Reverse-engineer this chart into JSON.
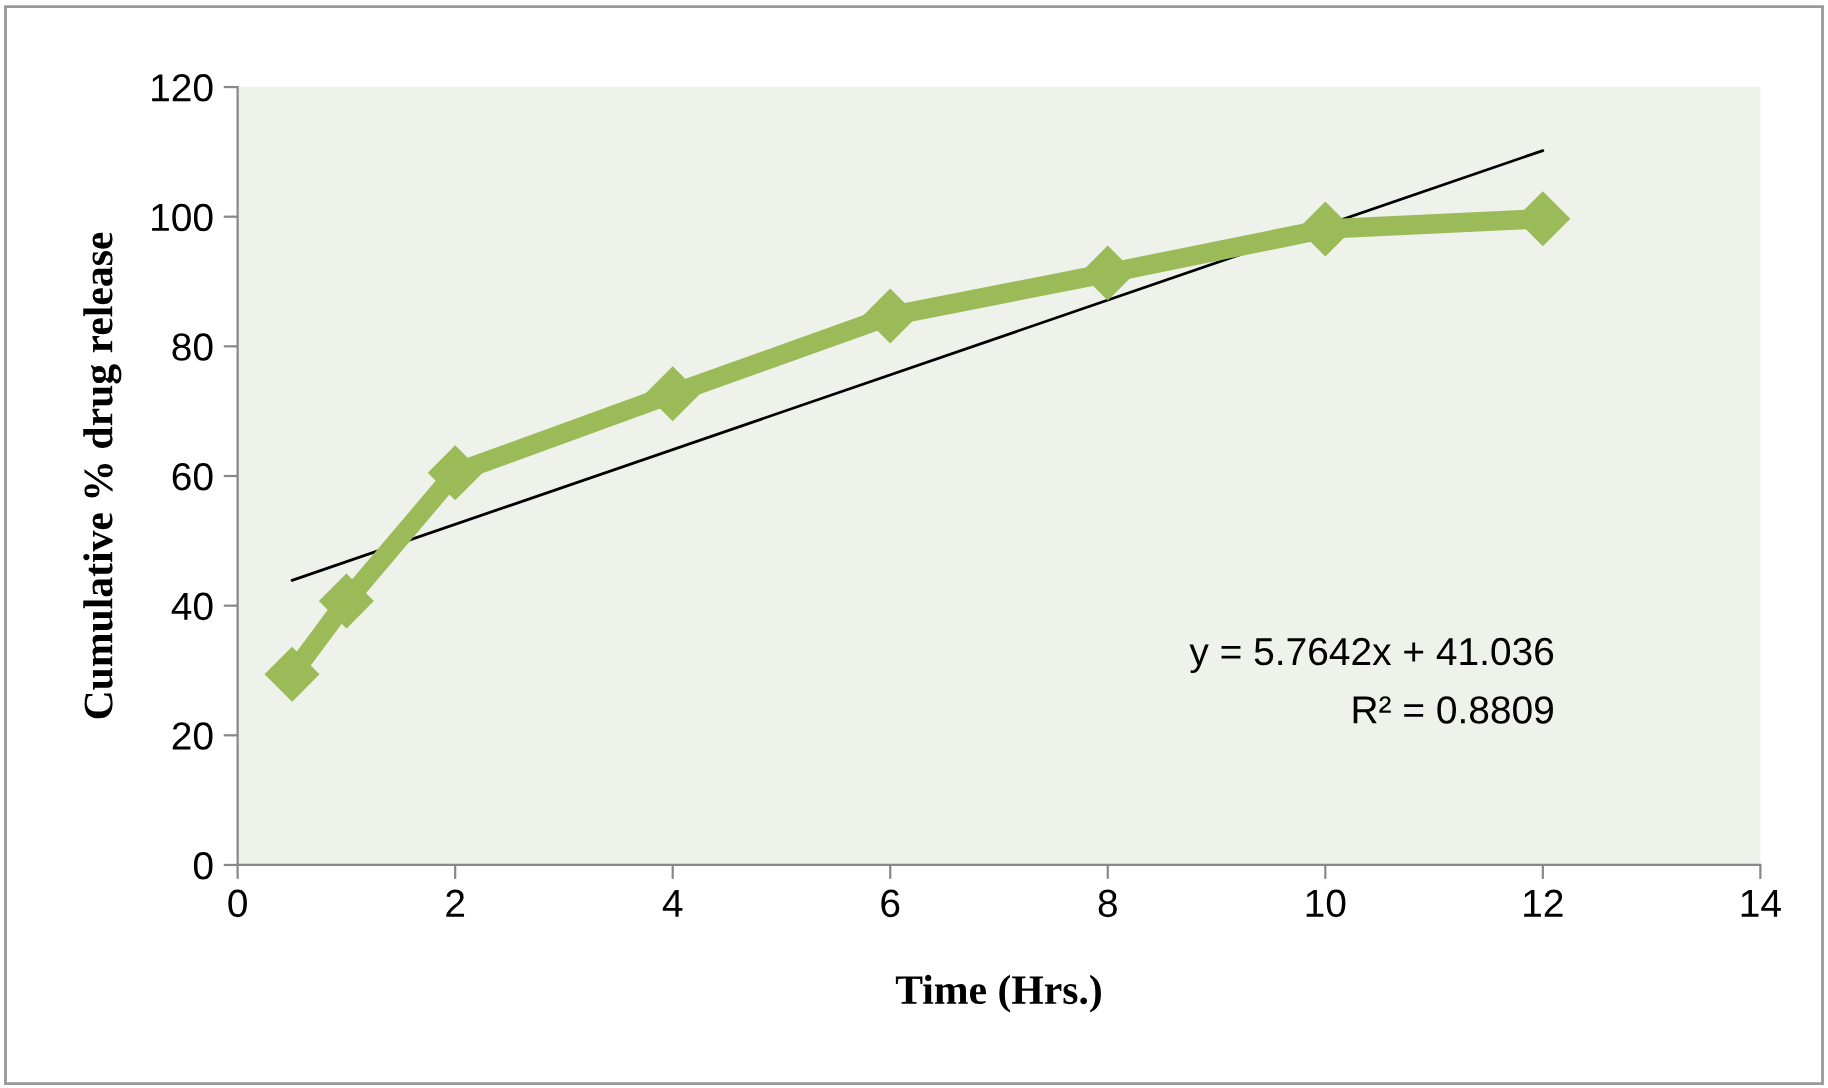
{
  "chart_data": {
    "type": "line",
    "xlabel": "Time (Hrs.)",
    "ylabel": "Cumulative % drug release",
    "series": [
      {
        "color": "#9bbb59",
        "marker": "diamond",
        "x": [
          0.5,
          1,
          2,
          4,
          6,
          8,
          10,
          12
        ],
        "values": [
          29.4,
          40.7,
          60.5,
          72.7,
          84.7,
          91.3,
          98.1,
          99.7
        ]
      },
      {
        "color": "#000000",
        "marker": "none",
        "x": [
          0.5,
          12
        ],
        "values": [
          43.9,
          110.2
        ]
      }
    ],
    "annotations": [
      "y = 5.7642x + 41.036",
      "R² = 0.8809"
    ],
    "xlim": [
      0,
      14
    ],
    "xticks": [
      0,
      2,
      4,
      6,
      8,
      10,
      12,
      14
    ],
    "ylim": [
      0,
      120
    ],
    "yticks": [
      0,
      20,
      40,
      60,
      80,
      100,
      120
    ],
    "grid": false,
    "legend": false
  }
}
